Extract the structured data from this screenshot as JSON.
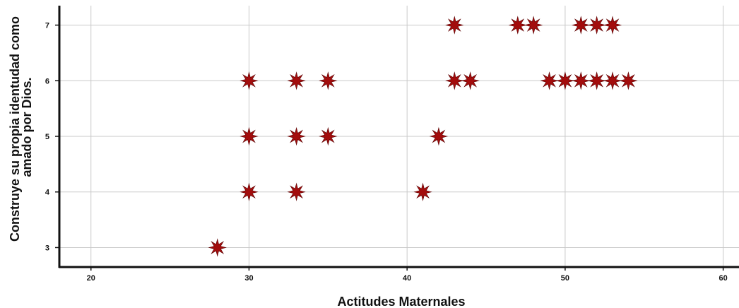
{
  "chart_data": {
    "type": "scatter",
    "title": "",
    "xlabel": "Actitudes Maternales",
    "ylabel_lines": [
      "Construye su propia identudad como",
      "amado por Dios."
    ],
    "xlim": [
      18,
      61
    ],
    "ylim": [
      2.65,
      7.35
    ],
    "x_ticks": [
      20,
      30,
      40,
      50,
      60
    ],
    "y_ticks": [
      3,
      4,
      5,
      6,
      7
    ],
    "grid": true,
    "marker": "star",
    "marker_color": "#a30d0d",
    "points": [
      {
        "x": 28,
        "y": 3
      },
      {
        "x": 30,
        "y": 4
      },
      {
        "x": 33,
        "y": 4
      },
      {
        "x": 41,
        "y": 4
      },
      {
        "x": 30,
        "y": 5
      },
      {
        "x": 33,
        "y": 5
      },
      {
        "x": 35,
        "y": 5
      },
      {
        "x": 42,
        "y": 5
      },
      {
        "x": 30,
        "y": 6
      },
      {
        "x": 33,
        "y": 6
      },
      {
        "x": 35,
        "y": 6
      },
      {
        "x": 43,
        "y": 6
      },
      {
        "x": 44,
        "y": 6
      },
      {
        "x": 49,
        "y": 6
      },
      {
        "x": 50,
        "y": 6
      },
      {
        "x": 51,
        "y": 6
      },
      {
        "x": 52,
        "y": 6
      },
      {
        "x": 53,
        "y": 6
      },
      {
        "x": 54,
        "y": 6
      },
      {
        "x": 43,
        "y": 7
      },
      {
        "x": 47,
        "y": 7
      },
      {
        "x": 48,
        "y": 7
      },
      {
        "x": 51,
        "y": 7
      },
      {
        "x": 52,
        "y": 7
      },
      {
        "x": 53,
        "y": 7
      }
    ]
  }
}
